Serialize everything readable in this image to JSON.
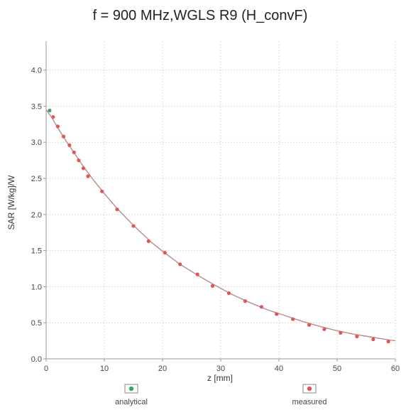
{
  "chart_data": {
    "type": "scatter",
    "title": "f = 900 MHz,WGLS R9 (H_convF)",
    "xlabel": "z [mm]",
    "ylabel": "SAR [W/kg]/W",
    "xlim": [
      0,
      60
    ],
    "ylim": [
      0,
      4.4
    ],
    "x_ticks": [
      0,
      10,
      20,
      30,
      40,
      50,
      60
    ],
    "y_ticks": [
      0.0,
      0.5,
      1.0,
      1.5,
      2.0,
      2.5,
      3.0,
      3.5,
      4.0
    ],
    "x_tick_labels": [
      "0",
      "10",
      "20",
      "30",
      "40",
      "50",
      "60"
    ],
    "y_tick_labels": [
      "0.0",
      "0.5",
      "1.0",
      "1.5",
      "2.0",
      "2.5",
      "3.0",
      "3.5",
      "4.0"
    ],
    "grid": true,
    "legend_position": "bottom",
    "series": [
      {
        "name": "analytical",
        "marker_color": "#3aa66a",
        "line_color": "#b98a8a",
        "x": [
          0,
          1,
          2,
          3,
          4,
          5,
          6,
          8,
          10,
          12,
          15,
          18,
          20,
          23,
          26,
          29,
          32,
          35,
          38,
          41,
          44,
          47,
          50,
          53,
          56,
          59,
          60
        ],
        "y": [
          3.45,
          3.34,
          3.2,
          3.07,
          2.95,
          2.83,
          2.71,
          2.49,
          2.29,
          2.1,
          1.85,
          1.62,
          1.49,
          1.31,
          1.16,
          1.02,
          0.89,
          0.78,
          0.68,
          0.6,
          0.52,
          0.45,
          0.39,
          0.34,
          0.3,
          0.26,
          0.25
        ],
        "marked_x": [
          0.6
        ],
        "marked_y": [
          3.44
        ]
      },
      {
        "name": "measured",
        "marker_color": "#e05555",
        "x": [
          1.2,
          2.0,
          3.0,
          4.0,
          4.8,
          5.6,
          6.4,
          7.2,
          9.6,
          12.2,
          15.0,
          17.6,
          20.4,
          23.0,
          26.0,
          28.6,
          31.4,
          34.2,
          37.0,
          39.6,
          42.4,
          45.2,
          47.8,
          50.6,
          53.4,
          56.2,
          58.8
        ],
        "y": [
          3.35,
          3.22,
          3.08,
          2.96,
          2.86,
          2.75,
          2.64,
          2.53,
          2.32,
          2.07,
          1.84,
          1.63,
          1.47,
          1.31,
          1.17,
          1.01,
          0.91,
          0.8,
          0.72,
          0.62,
          0.55,
          0.47,
          0.41,
          0.36,
          0.31,
          0.27,
          0.24
        ]
      }
    ]
  },
  "legend": {
    "items": [
      {
        "label": "analytical",
        "color": "#3aa66a"
      },
      {
        "label": "measured",
        "color": "#e05555"
      }
    ]
  },
  "colors": {
    "background": "#ffffff",
    "plot_background": "#ffffff",
    "grid": "#d9d9d9",
    "axis": "#999999"
  }
}
